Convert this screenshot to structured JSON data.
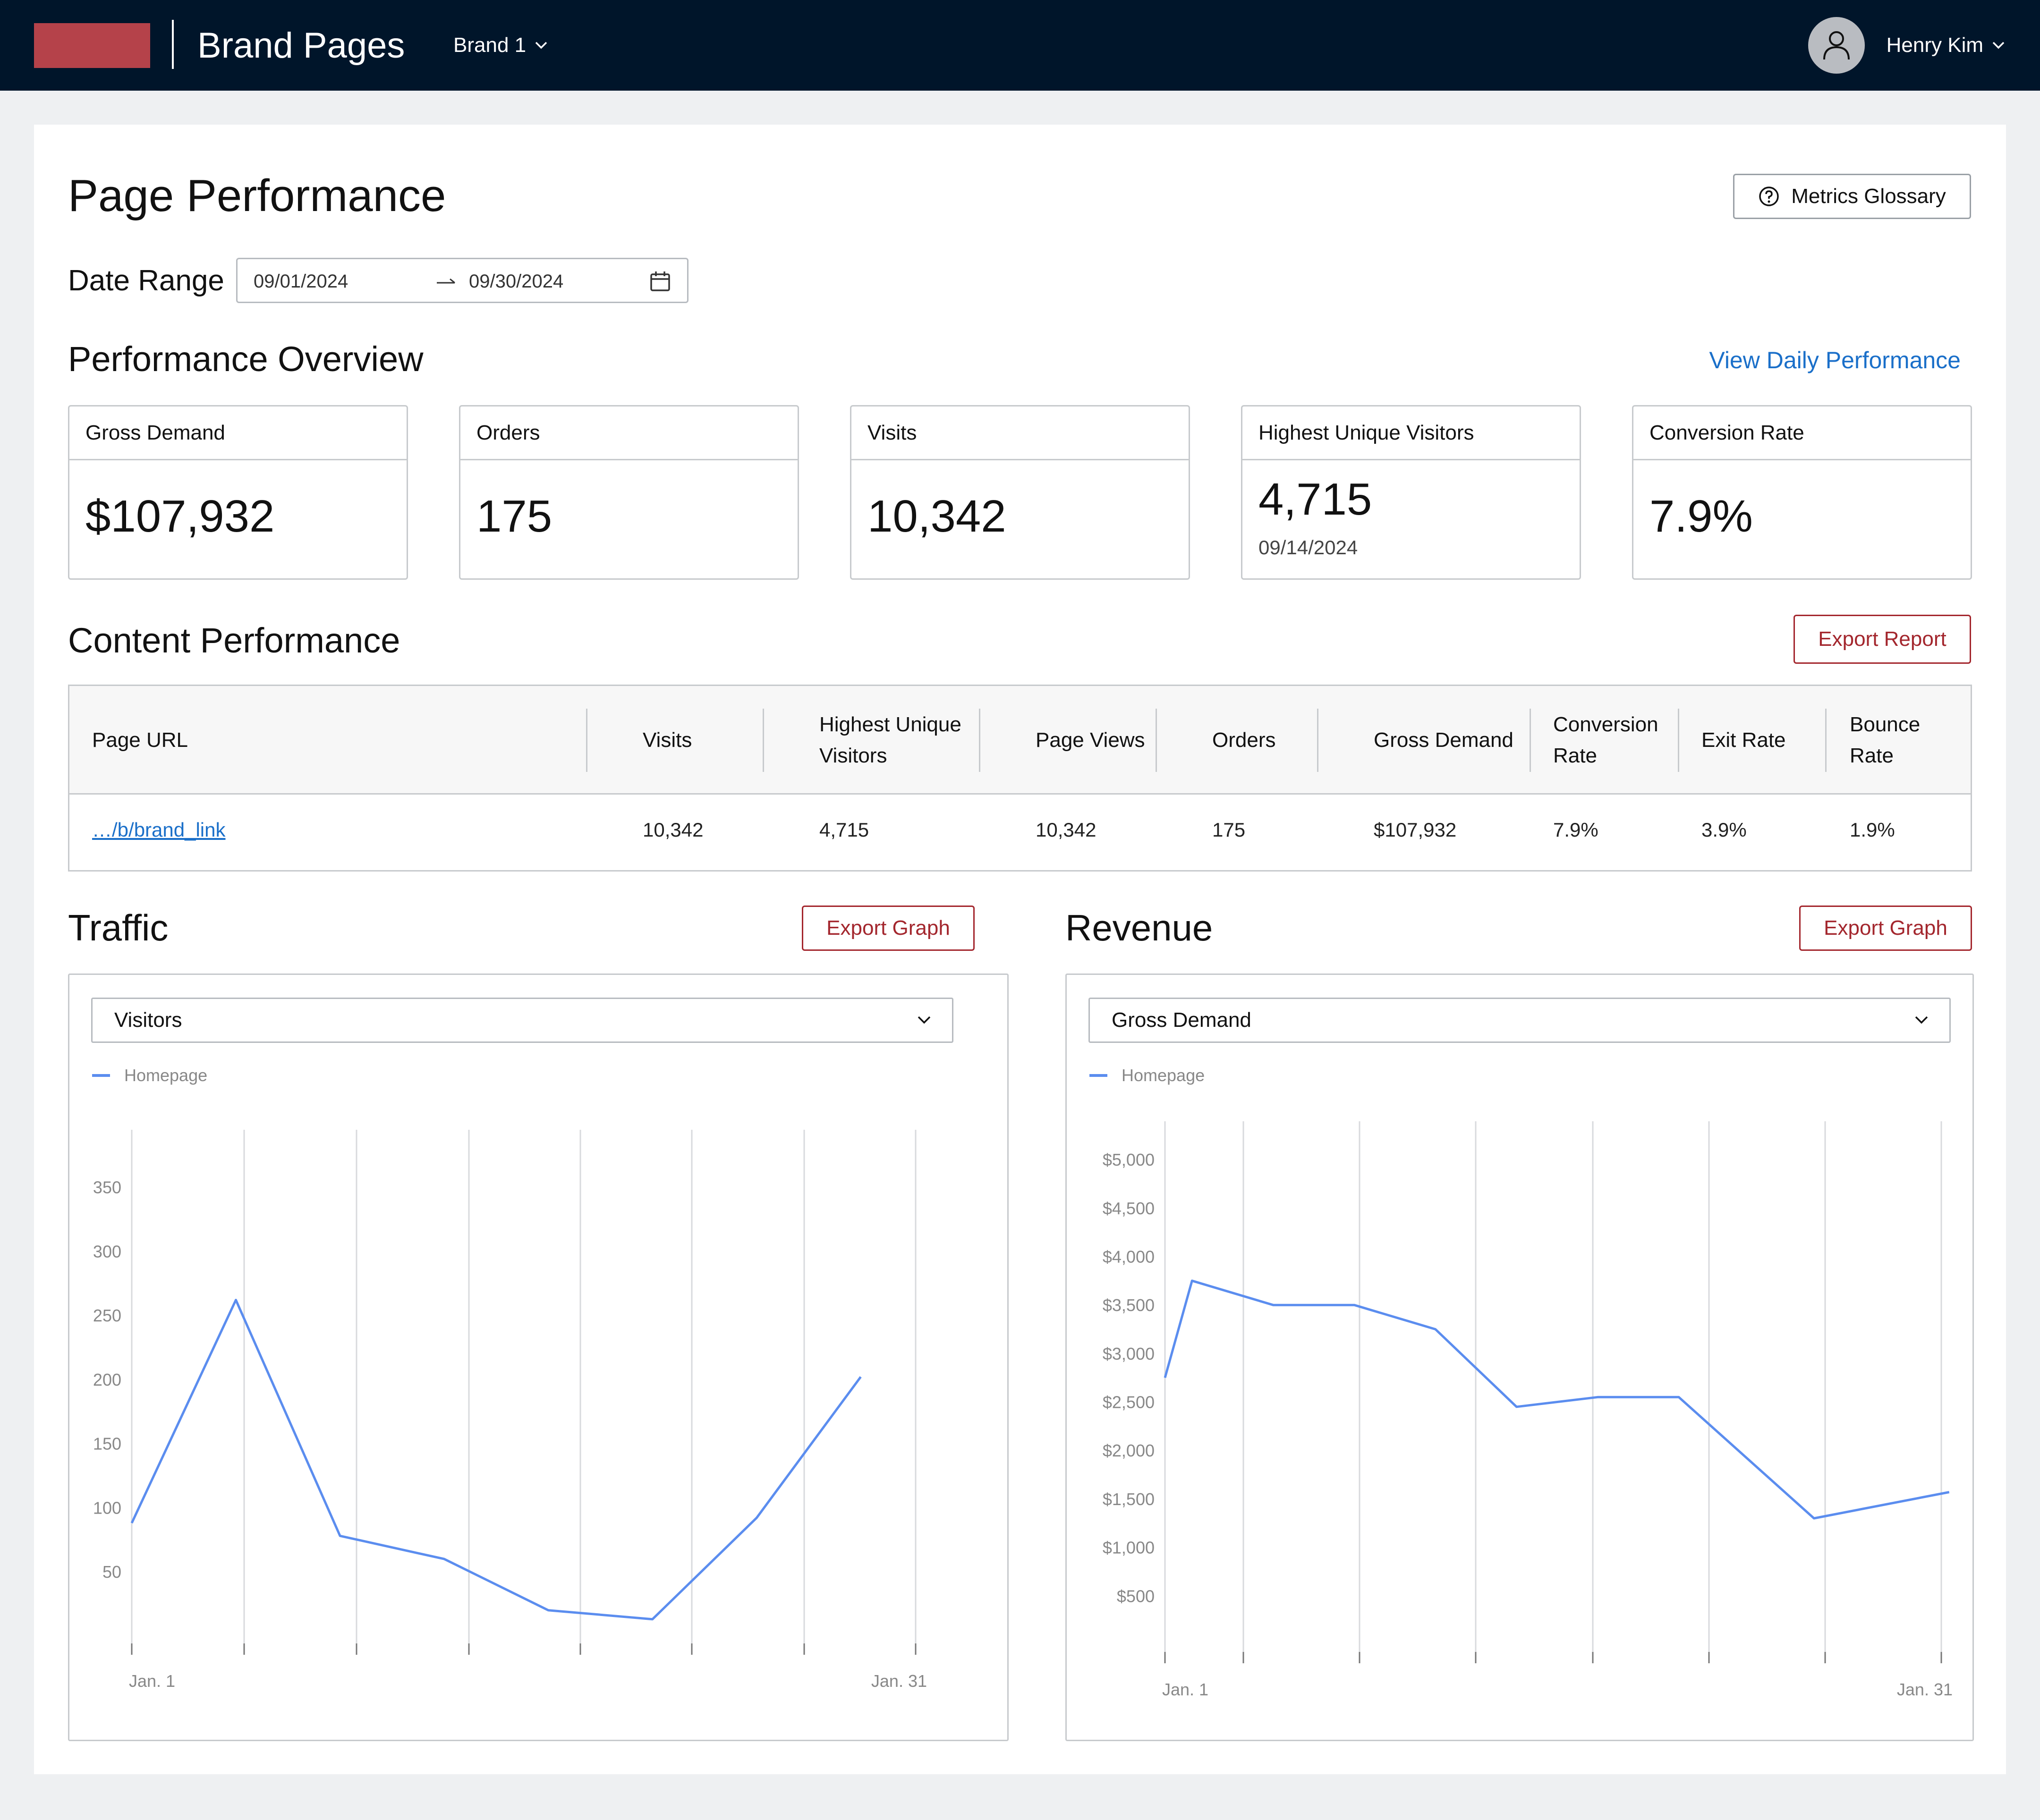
{
  "header": {
    "app_title": "Brand Pages",
    "brand_selector": "Brand 1",
    "user_name": "Henry Kim"
  },
  "page": {
    "title": "Page Performance",
    "glossary_button": "Metrics Glossary",
    "date_range_label": "Date Range",
    "date_start": "09/01/2024",
    "date_end": "09/30/2024"
  },
  "overview": {
    "title": "Performance Overview",
    "daily_link": "View Daily Performance",
    "metrics": [
      {
        "label": "Gross Demand",
        "value": "$107,932",
        "sub": ""
      },
      {
        "label": "Orders",
        "value": "175",
        "sub": ""
      },
      {
        "label": "Visits",
        "value": "10,342",
        "sub": ""
      },
      {
        "label": "Highest Unique Visitors",
        "value": "4,715",
        "sub": "09/14/2024"
      },
      {
        "label": "Conversion Rate",
        "value": "7.9%",
        "sub": ""
      }
    ]
  },
  "content": {
    "title": "Content Performance",
    "export_button": "Export Report",
    "columns": [
      "Page URL",
      "Visits",
      "Highest Unique Visitors",
      "Page Views",
      "Orders",
      "Gross Demand",
      "Conversion Rate",
      "Exit Rate",
      "Bounce Rate"
    ],
    "rows": [
      [
        "…/b/brand_link",
        "10,342",
        "4,715",
        "10,342",
        "175",
        "$107,932",
        "7.9%",
        "3.9%",
        "1.9%"
      ]
    ]
  },
  "traffic": {
    "title": "Traffic",
    "export_button": "Export Graph",
    "select_value": "Visitors",
    "legend": "Homepage"
  },
  "revenue": {
    "title": "Revenue",
    "export_button": "Export Graph",
    "select_value": "Gross Demand",
    "legend": "Homepage"
  },
  "colors": {
    "topbar": "#00152a",
    "logo": "#b5424a",
    "accent_red": "#a3262d",
    "link_blue": "#1a6fc9",
    "series_line": "#5b8def"
  },
  "chart_data": [
    {
      "type": "line",
      "title": "Traffic",
      "x_tick_labels": [
        "Jan. 1",
        "Jan. 31"
      ],
      "y_ticks": [
        50,
        100,
        150,
        200,
        250,
        300,
        350
      ],
      "ylim": [
        0,
        380
      ],
      "grid": "vertical",
      "legend_position": "top-left",
      "series": [
        {
          "name": "Homepage",
          "x": [
            1,
            5,
            9,
            13,
            17,
            21,
            25,
            29
          ],
          "y": [
            88,
            262,
            78,
            60,
            20,
            13,
            92,
            202
          ]
        }
      ]
    },
    {
      "type": "line",
      "title": "Revenue",
      "x_tick_labels": [
        "Jan. 1",
        "Jan. 31"
      ],
      "y_ticks": [
        "$500",
        "$1,000",
        "$1,500",
        "$2,000",
        "$2,500",
        "$3,000",
        "$3,500",
        "$4,000",
        "$4,500",
        "$5,000"
      ],
      "ylim": [
        0,
        5200
      ],
      "grid": "vertical",
      "legend_position": "top-left",
      "series": [
        {
          "name": "Homepage",
          "x": [
            1,
            2,
            5,
            8,
            11,
            14,
            17,
            20,
            25,
            30
          ],
          "y": [
            2750,
            3750,
            3500,
            3500,
            3250,
            2450,
            2550,
            2550,
            1300,
            1570
          ]
        }
      ]
    }
  ]
}
